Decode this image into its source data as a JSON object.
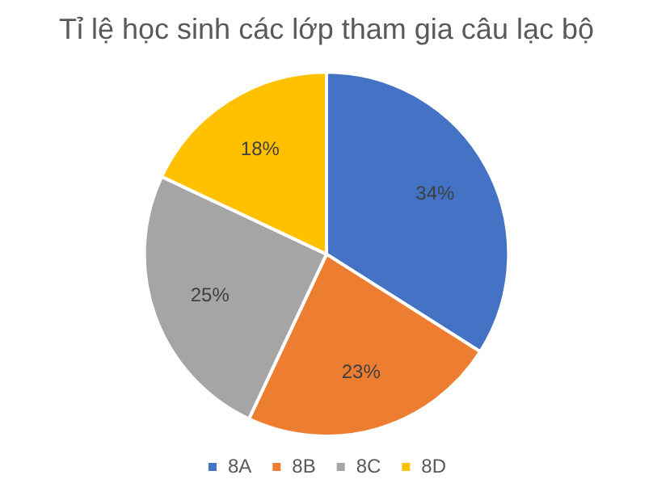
{
  "chart_data": {
    "type": "pie",
    "title": "Tỉ lệ học sinh các lớp tham gia câu lạc bộ",
    "categories": [
      "8A",
      "8B",
      "8C",
      "8D"
    ],
    "values": [
      34,
      23,
      25,
      18
    ],
    "colors": [
      "#4472c4",
      "#ed7d31",
      "#a5a5a5",
      "#ffc000"
    ],
    "value_labels": [
      "34%",
      "23%",
      "25%",
      "18%"
    ],
    "legend": "bottom"
  }
}
